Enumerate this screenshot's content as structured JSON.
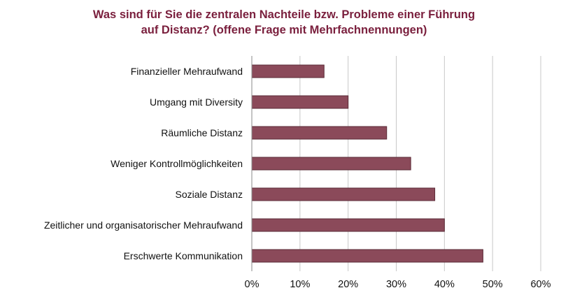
{
  "chart_data": {
    "type": "bar",
    "orientation": "horizontal",
    "title_lines": [
      "Was sind für Sie die zentralen Nachteile bzw. Probleme einer Führung",
      "auf Distanz? (offene Frage mit Mehrfachnennungen)"
    ],
    "categories": [
      "Finanzieller Mehraufwand",
      "Umgang mit Diversity",
      "Räumliche Distanz",
      "Weniger Kontrollmöglichkeiten",
      "Soziale Distanz",
      "Zeitlicher und organisatorischer Mehraufwand",
      "Erschwerte Kommunikation"
    ],
    "values": [
      15,
      20,
      28,
      33,
      38,
      40,
      48
    ],
    "xlim": [
      0,
      60
    ],
    "xticks": [
      0,
      10,
      20,
      30,
      40,
      50,
      60
    ],
    "tick_labels": [
      "0%",
      "10%",
      "20%",
      "30%",
      "40%",
      "50%",
      "60%"
    ],
    "grid": true,
    "legend": "none",
    "bar_color": "#8b4a5a",
    "bar_edge_color": "#5a2a36",
    "title_color": "#7a1f3d",
    "grid_color": "#c8c8c8"
  }
}
